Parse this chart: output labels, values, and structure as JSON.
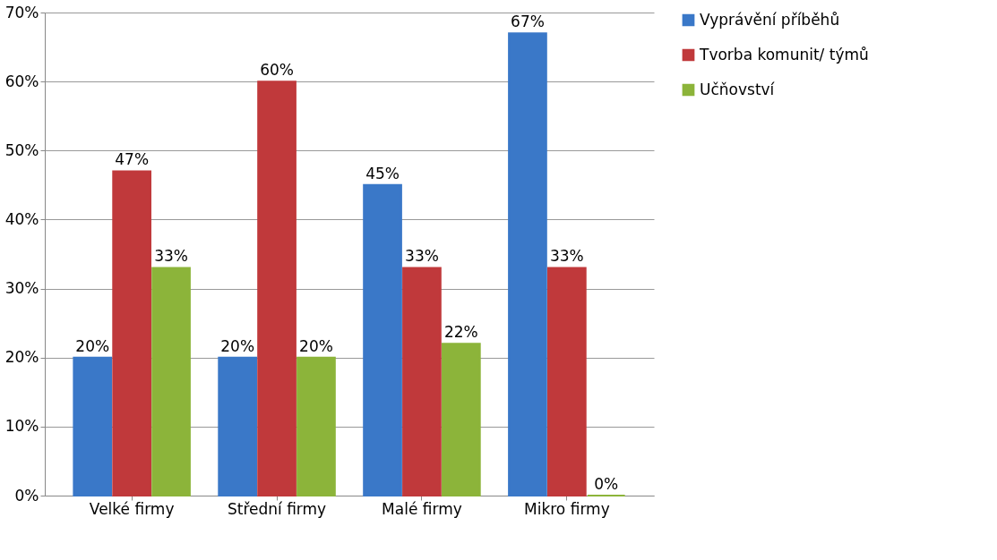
{
  "chart_data": {
    "type": "bar",
    "categories": [
      "Velké firmy",
      "Střední firmy",
      "Malé firmy",
      "Mikro firmy"
    ],
    "series": [
      {
        "name": "Vyprávění příběhů",
        "color": "#3a78c8",
        "values": [
          20,
          20,
          45,
          67
        ],
        "value_labels": [
          "20%",
          "20%",
          "45%",
          "67%"
        ]
      },
      {
        "name": "Tvorba komunit/ týmů",
        "color": "#c0393b",
        "values": [
          47,
          60,
          33,
          33
        ],
        "value_labels": [
          "47%",
          "60%",
          "33%",
          "33%"
        ]
      },
      {
        "name": "Učňovství",
        "color": "#8cb43a",
        "values": [
          33,
          20,
          22,
          0
        ],
        "value_labels": [
          "33%",
          "20%",
          "22%",
          "0%"
        ]
      }
    ],
    "ylim": [
      0,
      70
    ],
    "yticks": [
      {
        "value": 0,
        "label": "0%"
      },
      {
        "value": 10,
        "label": "10%"
      },
      {
        "value": 20,
        "label": "20%"
      },
      {
        "value": 30,
        "label": "30%"
      },
      {
        "value": 40,
        "label": "40%"
      },
      {
        "value": 50,
        "label": "50%"
      },
      {
        "value": 60,
        "label": "60%"
      },
      {
        "value": 70,
        "label": "70%"
      }
    ],
    "grid": "y",
    "legend": "right"
  }
}
